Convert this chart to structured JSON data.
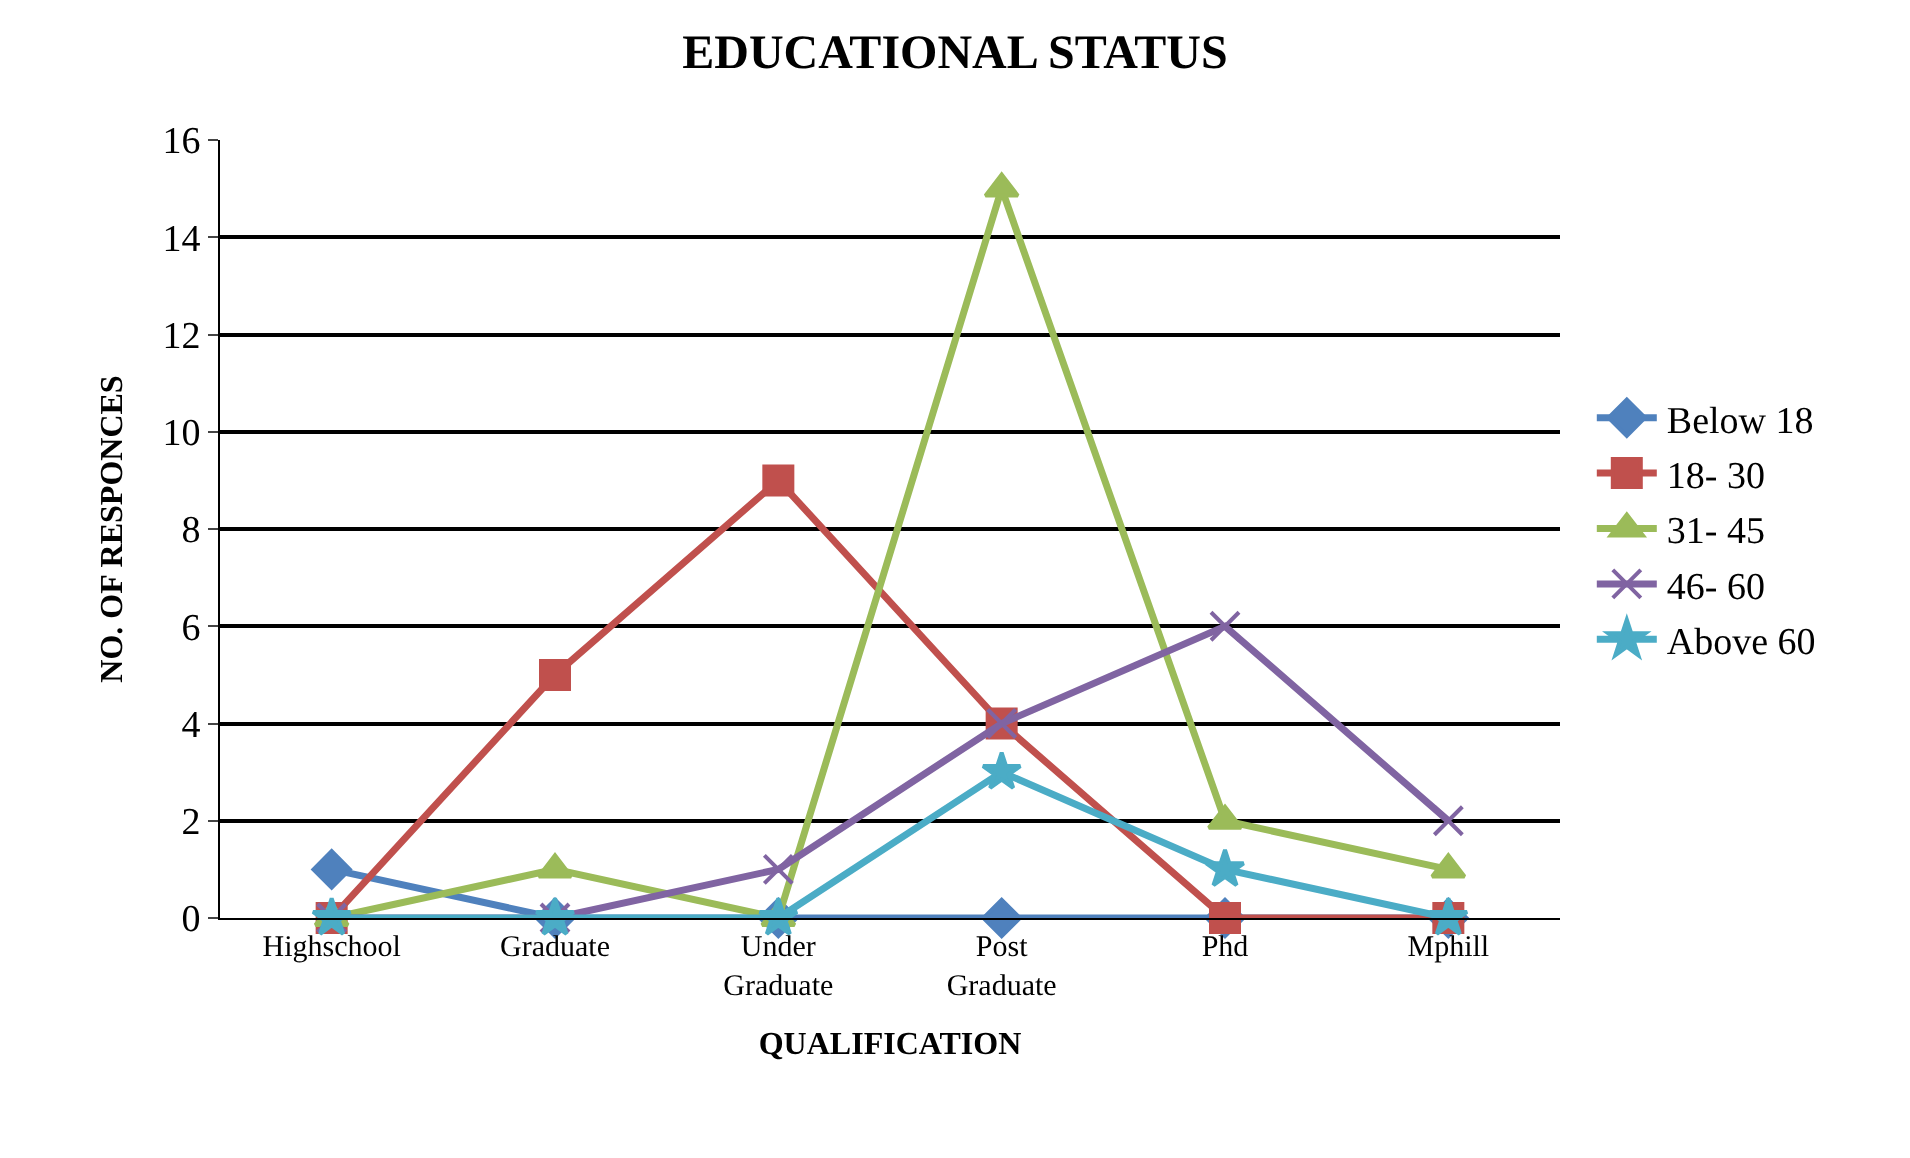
{
  "chart_data": {
    "type": "line",
    "title": "EDUCATIONAL STATUS",
    "xlabel": "QUALIFICATION",
    "ylabel": "NO. OF RESPONCES",
    "categories": [
      "Highschool",
      "Graduate",
      "Under Graduate",
      "Post Graduate",
      "Phd",
      "Mphill"
    ],
    "ylim": [
      0,
      16
    ],
    "yticks": [
      0,
      2,
      4,
      6,
      8,
      10,
      12,
      14,
      16
    ],
    "grid": "y",
    "legend": "right",
    "line_style": "solid",
    "series": [
      {
        "name": "Below 18",
        "color": "#4f81bd",
        "marker": "diamond",
        "values": [
          1,
          0,
          0,
          0,
          0,
          0
        ]
      },
      {
        "name": "18- 30",
        "color": "#c0504d",
        "marker": "square",
        "values": [
          0,
          5,
          9,
          4,
          0,
          0
        ]
      },
      {
        "name": "31- 45",
        "color": "#9bbb59",
        "marker": "triangle",
        "values": [
          0,
          1,
          0,
          15,
          2,
          1
        ]
      },
      {
        "name": "46- 60",
        "color": "#8064a2",
        "marker": "cross",
        "values": [
          0,
          0,
          1,
          4,
          6,
          2
        ]
      },
      {
        "name": "Above 60",
        "color": "#4bacc6",
        "marker": "star",
        "values": [
          0,
          0,
          0,
          3,
          1,
          0
        ]
      }
    ]
  }
}
